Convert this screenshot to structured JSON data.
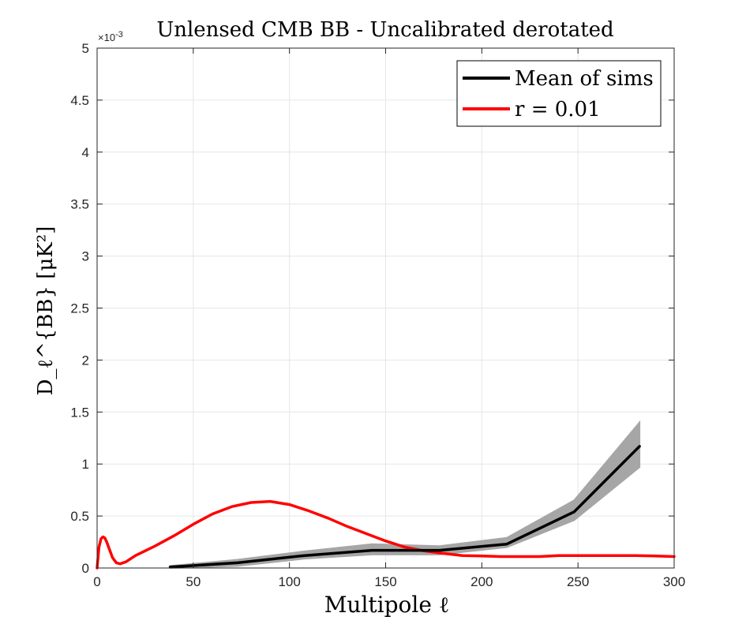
{
  "chart_data": {
    "type": "line",
    "title": "Unlensed CMB BB - Uncalibrated derotated",
    "xlabel": "Multipole ℓ",
    "ylabel": "D_ℓ^{BB} [μK²]",
    "y_exponent": "×10-3",
    "y_exponent_base": "×10",
    "y_exponent_power": "-3",
    "xlim": [
      0,
      300
    ],
    "ylim": [
      0,
      0.005
    ],
    "x_ticks": [
      0,
      50,
      100,
      150,
      200,
      250,
      300
    ],
    "x_tick_labels": [
      "0",
      "50",
      "100",
      "150",
      "200",
      "250",
      "300"
    ],
    "y_ticks": [
      0,
      0.0005,
      0.001,
      0.0015,
      0.002,
      0.0025,
      0.003,
      0.0035,
      0.004,
      0.0045,
      0.005
    ],
    "y_tick_labels": [
      "0",
      "0.5",
      "1",
      "1.5",
      "2",
      "2.5",
      "3",
      "3.5",
      "4",
      "4.5",
      "5"
    ],
    "grid": true,
    "legend_position": "top-right",
    "series": [
      {
        "name": "Mean of sims",
        "color": "#000000",
        "x": [
          38,
          73,
          108,
          143,
          178,
          213,
          248,
          282
        ],
        "y": [
          1e-05,
          5e-05,
          0.00012,
          0.00017,
          0.00017,
          0.00023,
          0.00054,
          0.00117
        ]
      },
      {
        "name": "r = 0.01",
        "color": "#ff0000",
        "x": [
          0,
          1,
          2,
          3,
          4,
          5,
          6,
          8,
          10,
          12,
          15,
          20,
          30,
          40,
          50,
          60,
          70,
          80,
          90,
          100,
          110,
          120,
          130,
          140,
          150,
          160,
          170,
          180,
          190,
          200,
          210,
          220,
          230,
          240,
          250,
          260,
          270,
          280,
          290,
          300
        ],
        "y": [
          0.0,
          0.0002,
          0.00028,
          0.0003,
          0.00029,
          0.00025,
          0.0002,
          0.0001,
          5e-05,
          4e-05,
          6e-05,
          0.00012,
          0.00021,
          0.00031,
          0.00042,
          0.00052,
          0.00059,
          0.00063,
          0.00064,
          0.00061,
          0.00055,
          0.00048,
          0.0004,
          0.00033,
          0.00026,
          0.0002,
          0.000165,
          0.00014,
          0.00012,
          0.000115,
          0.00011,
          0.00011,
          0.00011,
          0.00012,
          0.00012,
          0.00012,
          0.00012,
          0.00012,
          0.000115,
          0.00011
        ]
      }
    ],
    "band": {
      "color": "#a6a6a6",
      "x": [
        38,
        73,
        108,
        143,
        178,
        213,
        248,
        282
      ],
      "lower": [
        0.0,
        2e-05,
        9e-05,
        0.00013,
        0.00013,
        0.0002,
        0.00046,
        0.00097
      ],
      "upper": [
        2e-05,
        8e-05,
        0.00016,
        0.00023,
        0.00021,
        0.00029,
        0.00065,
        0.0014
      ]
    }
  }
}
